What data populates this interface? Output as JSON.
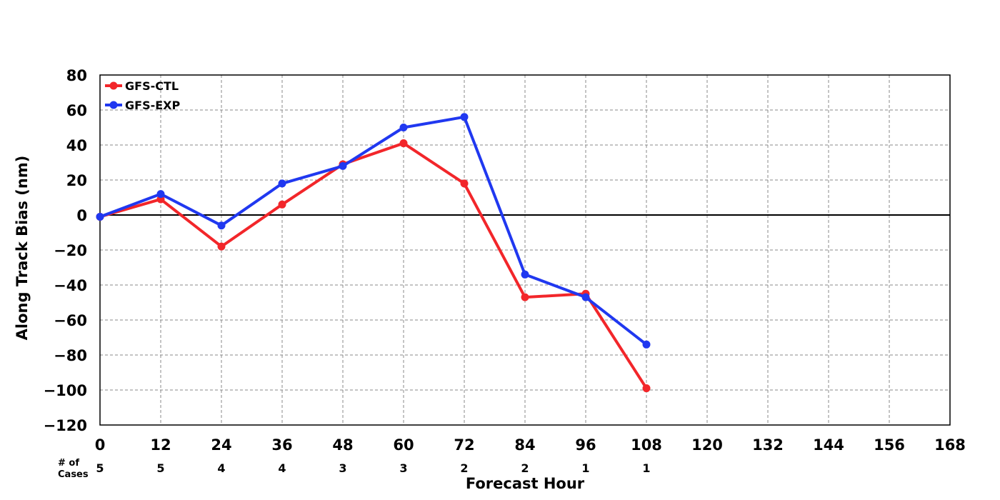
{
  "chart_data": {
    "type": "line",
    "xlabel": "Forecast Hour",
    "ylabel": "Along Track Bias (nm)",
    "xlim": [
      0,
      168
    ],
    "ylim": [
      -120,
      80
    ],
    "xticks": [
      "0",
      "12",
      "24",
      "36",
      "48",
      "60",
      "72",
      "84",
      "96",
      "108",
      "120",
      "132",
      "144",
      "156",
      "168"
    ],
    "yticks": [
      "80",
      "60",
      "40",
      "20",
      "0",
      "−20",
      "−40",
      "−60",
      "−80",
      "−100",
      "−120"
    ],
    "grid": true,
    "legend_position": "top-left",
    "cases_label_line1": "# of",
    "cases_label_line2": "Cases",
    "cases": [
      {
        "x": 0,
        "n": "5"
      },
      {
        "x": 12,
        "n": "5"
      },
      {
        "x": 24,
        "n": "4"
      },
      {
        "x": 36,
        "n": "4"
      },
      {
        "x": 48,
        "n": "3"
      },
      {
        "x": 60,
        "n": "3"
      },
      {
        "x": 72,
        "n": "2"
      },
      {
        "x": 84,
        "n": "2"
      },
      {
        "x": 96,
        "n": "1"
      },
      {
        "x": 108,
        "n": "1"
      }
    ],
    "x": [
      0,
      12,
      24,
      36,
      48,
      60,
      72,
      84,
      96,
      108
    ],
    "series": [
      {
        "name": "GFS-CTL",
        "color": "#f2262a",
        "values": [
          -1,
          9,
          -18,
          6,
          29,
          41,
          18,
          -47,
          -45,
          -99
        ]
      },
      {
        "name": "GFS-EXP",
        "color": "#2038f0",
        "values": [
          -1,
          12,
          -6,
          18,
          28,
          50,
          56,
          -34,
          -47,
          -74
        ]
      }
    ]
  }
}
